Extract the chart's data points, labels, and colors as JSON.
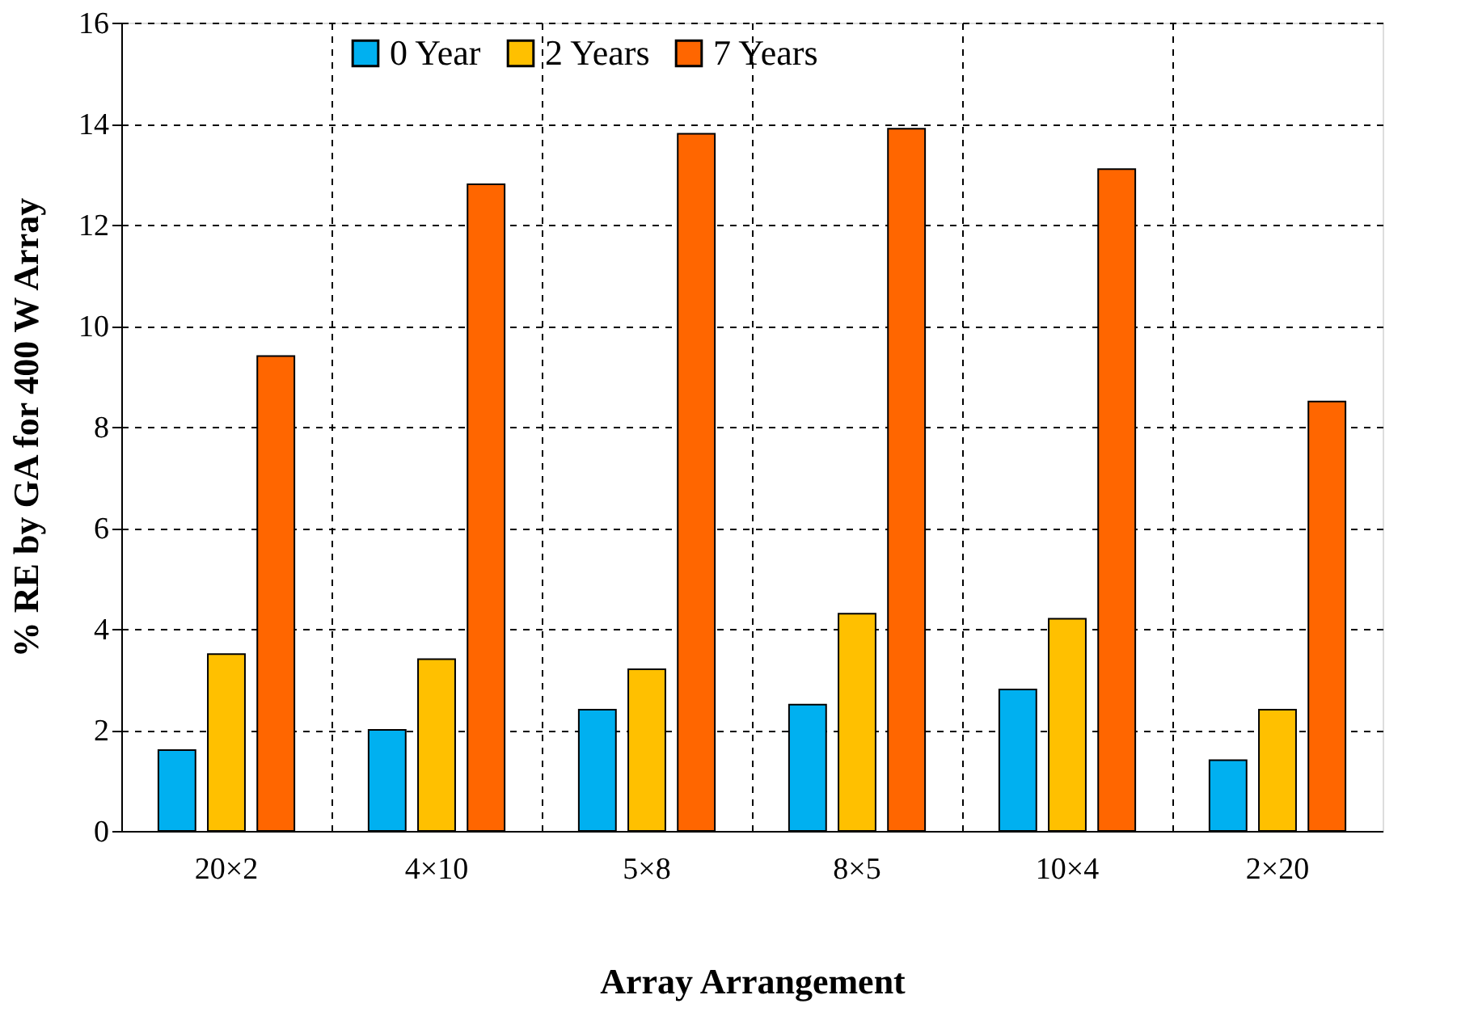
{
  "chart_data": {
    "type": "bar",
    "xlabel": "Array Arrangement",
    "ylabel": "% RE by GA for 400 W Array",
    "categories": [
      "20×2",
      "4×10",
      "5×8",
      "8×5",
      "10×4",
      "2×20"
    ],
    "series": [
      {
        "name": "0 Year",
        "color": "#00b0f0",
        "values": [
          1.6,
          2.0,
          2.4,
          2.5,
          2.8,
          1.4
        ]
      },
      {
        "name": "2 Years",
        "color": "#ffc000",
        "values": [
          3.5,
          3.4,
          3.2,
          4.3,
          4.2,
          2.4
        ]
      },
      {
        "name": "7 Years",
        "color": "#ff6600",
        "values": [
          9.4,
          12.8,
          13.8,
          13.9,
          13.1,
          8.5
        ]
      }
    ],
    "ylim": [
      0,
      16
    ],
    "yticks": [
      0,
      2,
      4,
      6,
      8,
      10,
      12,
      14,
      16
    ],
    "grid": true,
    "legend": "top"
  }
}
